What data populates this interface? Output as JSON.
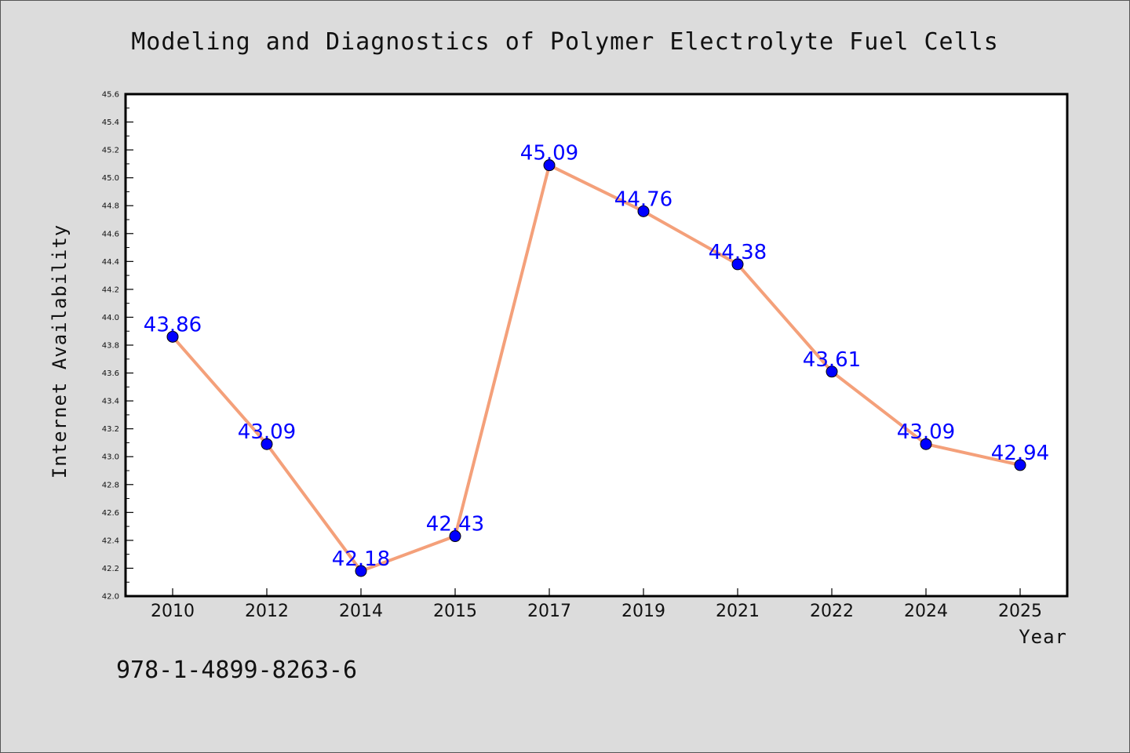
{
  "chart_data": {
    "type": "line",
    "title": "Modeling and Diagnostics of Polymer Electrolyte Fuel Cells",
    "xlabel": "Year",
    "ylabel": "Internet Availability",
    "categories": [
      "2010",
      "2012",
      "2014",
      "2015",
      "2017",
      "2019",
      "2021",
      "2022",
      "2024",
      "2025"
    ],
    "series": [
      {
        "values": [
          43.86,
          43.09,
          42.18,
          42.43,
          45.09,
          44.76,
          44.38,
          43.61,
          43.09,
          42.94
        ],
        "labels": [
          "43.86",
          "43.09",
          "42.18",
          "42.43",
          "45.09",
          "44.76",
          "44.38",
          "43.61",
          "43.09",
          "42.94"
        ],
        "line_color": "#f4a07a",
        "marker_color": "#0000ff"
      }
    ],
    "ylim": [
      42.0,
      45.6
    ],
    "yticks": [
      "42.0",
      "42.2",
      "42.4",
      "42.6",
      "42.8",
      "43.0",
      "43.2",
      "43.4",
      "43.6",
      "43.8",
      "44.0",
      "44.2",
      "44.4",
      "44.6",
      "44.8",
      "45.0",
      "45.2",
      "45.4",
      "45.6"
    ],
    "grid": false,
    "background": "#dcdcdc",
    "plot_background": "#ffffff"
  },
  "footer": {
    "isbn": "978-1-4899-8263-6"
  }
}
